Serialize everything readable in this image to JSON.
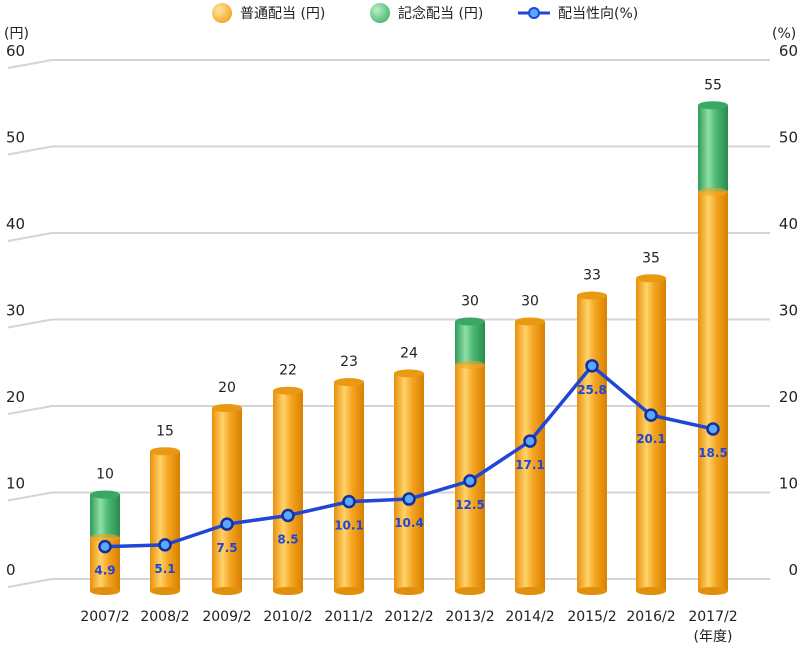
{
  "chart_data": {
    "type": "bar",
    "categories": [
      "2007/2",
      "2008/2",
      "2009/2",
      "2010/2",
      "2011/2",
      "2012/2",
      "2013/2",
      "2014/2",
      "2015/2",
      "2016/2",
      "2017/2"
    ],
    "category_suffix_last": "(年度)",
    "series": [
      {
        "name": "普通配当 (円)",
        "type": "bar",
        "stack": "dividend",
        "color": "#f5a623",
        "values": [
          5,
          15,
          20,
          22,
          23,
          24,
          25,
          30,
          33,
          35,
          45
        ]
      },
      {
        "name": "記念配当 (円)",
        "type": "bar",
        "stack": "dividend",
        "color": "#4cb873",
        "values": [
          5,
          0,
          0,
          0,
          0,
          0,
          5,
          0,
          0,
          0,
          10
        ]
      },
      {
        "name": "配当性向(%)",
        "type": "line",
        "axis": "right",
        "color": "#1f46d6",
        "values": [
          4.9,
          5.1,
          7.5,
          8.5,
          10.1,
          10.4,
          12.5,
          17.1,
          25.8,
          20.1,
          18.5
        ]
      }
    ],
    "bar_totals": [
      10,
      15,
      20,
      22,
      23,
      24,
      30,
      30,
      33,
      35,
      55
    ],
    "y_left": {
      "label": "(円)",
      "ylim": [
        0,
        60
      ],
      "ticks": [
        0,
        10,
        20,
        30,
        40,
        50,
        60
      ]
    },
    "y_right": {
      "label": "(%)",
      "ylim": [
        0,
        60
      ],
      "ticks": [
        0,
        10,
        20,
        30,
        40,
        50,
        60
      ]
    },
    "grid": true,
    "legend_position": "top-center"
  }
}
